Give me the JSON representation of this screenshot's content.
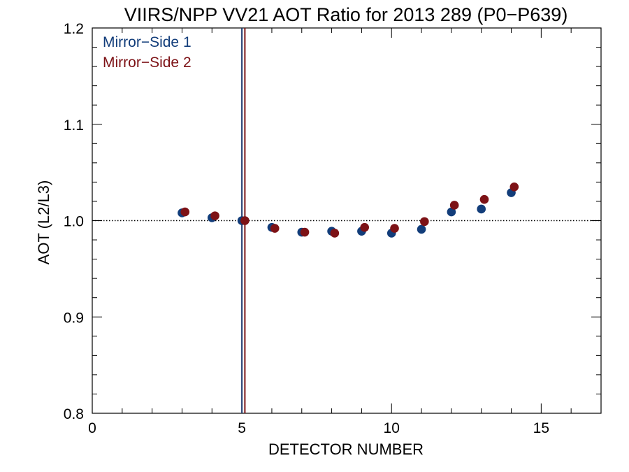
{
  "chart_data": {
    "type": "scatter",
    "title": "VIIRS/NPP VV21 AOT Ratio for 2013 289 (P0−P639)",
    "xlabel": "DETECTOR NUMBER",
    "ylabel": "AOT (L2/L3)",
    "xlim": [
      0,
      17
    ],
    "ylim": [
      0.8,
      1.2
    ],
    "x_ticks": [
      0,
      5,
      10,
      15
    ],
    "x_tick_labels": [
      "0",
      "5",
      "10",
      "15"
    ],
    "y_ticks": [
      0.8,
      0.9,
      1.0,
      1.1,
      1.2
    ],
    "y_tick_labels": [
      "0.8",
      "0.9",
      "1.0",
      "1.1",
      "1.2"
    ],
    "reference_line_y": 1.0,
    "vertical_lines": [
      {
        "x": 5.0,
        "color": "#1f3a6e"
      },
      {
        "x": 5.1,
        "color": "#7a1416"
      }
    ],
    "legend_position": "top-left",
    "grid": false,
    "series": [
      {
        "name": "Mirror−Side 1",
        "color": "#123d7a",
        "x": [
          3,
          4,
          5,
          6,
          7,
          8,
          9,
          10,
          11,
          12,
          13,
          14
        ],
        "y": [
          1.008,
          1.003,
          1.0,
          0.993,
          0.988,
          0.989,
          0.989,
          0.987,
          0.991,
          1.009,
          1.012,
          1.029
        ]
      },
      {
        "name": "Mirror−Side 2",
        "color": "#7d1216",
        "x": [
          3.1,
          4.1,
          5.1,
          6.1,
          7.1,
          8.1,
          9.1,
          10.1,
          11.1,
          12.1,
          13.1,
          14.1
        ],
        "y": [
          1.009,
          1.005,
          1.0,
          0.992,
          0.988,
          0.987,
          0.993,
          0.992,
          0.999,
          1.016,
          1.022,
          1.035
        ]
      }
    ]
  }
}
